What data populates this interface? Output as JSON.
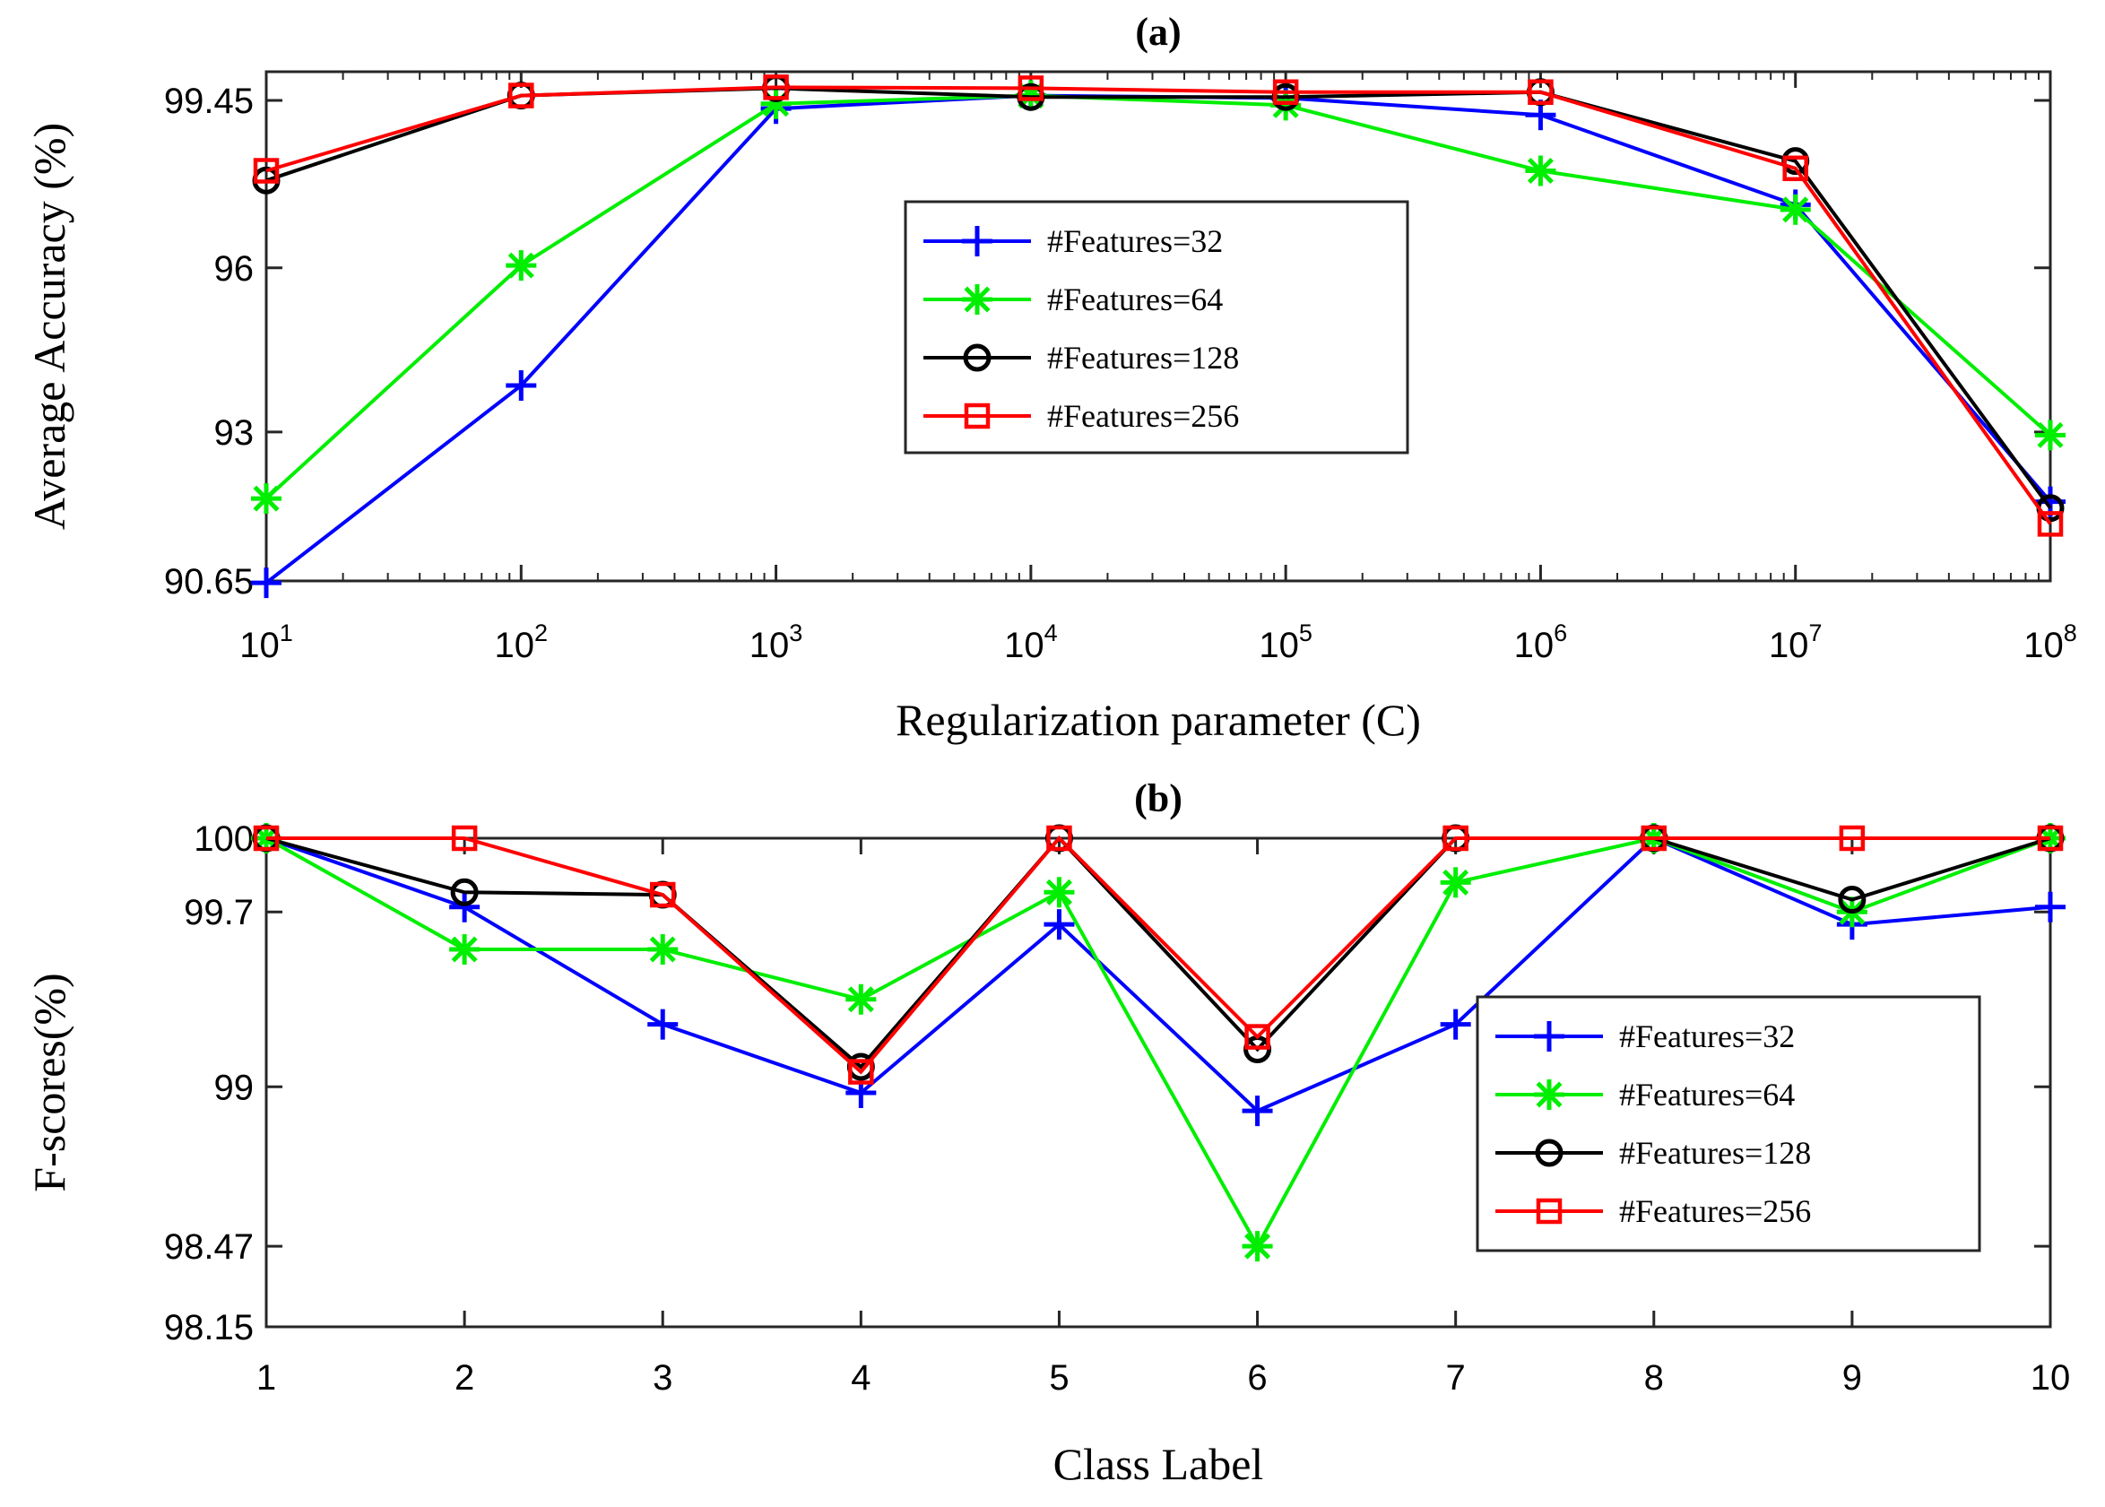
{
  "chart_data": [
    {
      "panel": "(a)",
      "type": "line",
      "title": "(a)",
      "xlabel": "Regularization parameter (C)",
      "ylabel": "Average Accuracy (%)",
      "xscale": "log",
      "x": [
        10,
        100,
        1000,
        10000,
        100000,
        1000000,
        10000000,
        100000000
      ],
      "x_tick_base": "10",
      "x_tick_exponents": [
        "1",
        "2",
        "3",
        "4",
        "5",
        "6",
        "7",
        "8"
      ],
      "y_ticks": [
        "90.65",
        "93",
        "96",
        "99.45"
      ],
      "y_tick_values": [
        90.65,
        93,
        96,
        99.45
      ],
      "y_tick_positions": [
        0.0,
        0.2925,
        0.6148,
        0.9437
      ],
      "y_anchor_values": [
        90.65,
        93,
        96,
        99.45
      ],
      "legend_position": "center-right",
      "series": [
        {
          "name": "#Features=32",
          "color": "#0000ff",
          "marker": "plus",
          "values": [
            90.62,
            93.85,
            99.28,
            99.55,
            99.5,
            99.15,
            97.3,
            91.9
          ]
        },
        {
          "name": "#Features=64",
          "color": "#00ee00",
          "marker": "asterisk",
          "values": [
            91.95,
            96.05,
            99.38,
            99.55,
            99.35,
            98.0,
            97.2,
            92.95
          ]
        },
        {
          "name": "#Features=128",
          "color": "#000000",
          "marker": "circle",
          "values": [
            97.8,
            99.55,
            99.7,
            99.52,
            99.52,
            99.62,
            98.2,
            91.8
          ]
        },
        {
          "name": "#Features=256",
          "color": "#ff0000",
          "marker": "square",
          "values": [
            98.0,
            99.55,
            99.72,
            99.7,
            99.62,
            99.62,
            98.05,
            91.55
          ]
        }
      ]
    },
    {
      "panel": "(b)",
      "type": "line",
      "title": "(b)",
      "xlabel": "Class Label",
      "ylabel": "F-scores(%)",
      "categories": [
        "1",
        "2",
        "3",
        "4",
        "5",
        "6",
        "7",
        "8",
        "9",
        "10"
      ],
      "y_ticks": [
        "98.15",
        "98.47",
        "99",
        "99.7",
        "100"
      ],
      "y_tick_values": [
        98.15,
        98.47,
        99,
        99.7,
        100
      ],
      "y_tick_positions": [
        0.0,
        0.1649,
        0.4912,
        0.8491,
        1.0
      ],
      "y_anchor_values": [
        98.15,
        98.47,
        99,
        99.7,
        100
      ],
      "legend_position": "lower-right",
      "series": [
        {
          "name": "#Features=32",
          "color": "#0000ff",
          "marker": "plus",
          "values": [
            100,
            99.72,
            99.25,
            98.98,
            99.65,
            98.92,
            99.25,
            100,
            99.65,
            99.72
          ]
        },
        {
          "name": "#Features=64",
          "color": "#00ee00",
          "marker": "asterisk",
          "values": [
            100,
            99.55,
            99.55,
            99.35,
            99.78,
            98.47,
            99.82,
            100,
            99.7,
            100
          ]
        },
        {
          "name": "#Features=128",
          "color": "#000000",
          "marker": "circle",
          "values": [
            100,
            99.78,
            99.77,
            99.08,
            100,
            99.15,
            100,
            100,
            99.75,
            100
          ]
        },
        {
          "name": "#Features=256",
          "color": "#ff0000",
          "marker": "square",
          "values": [
            100,
            100,
            99.77,
            99.06,
            100,
            99.2,
            100,
            100,
            100,
            100
          ]
        }
      ]
    }
  ]
}
